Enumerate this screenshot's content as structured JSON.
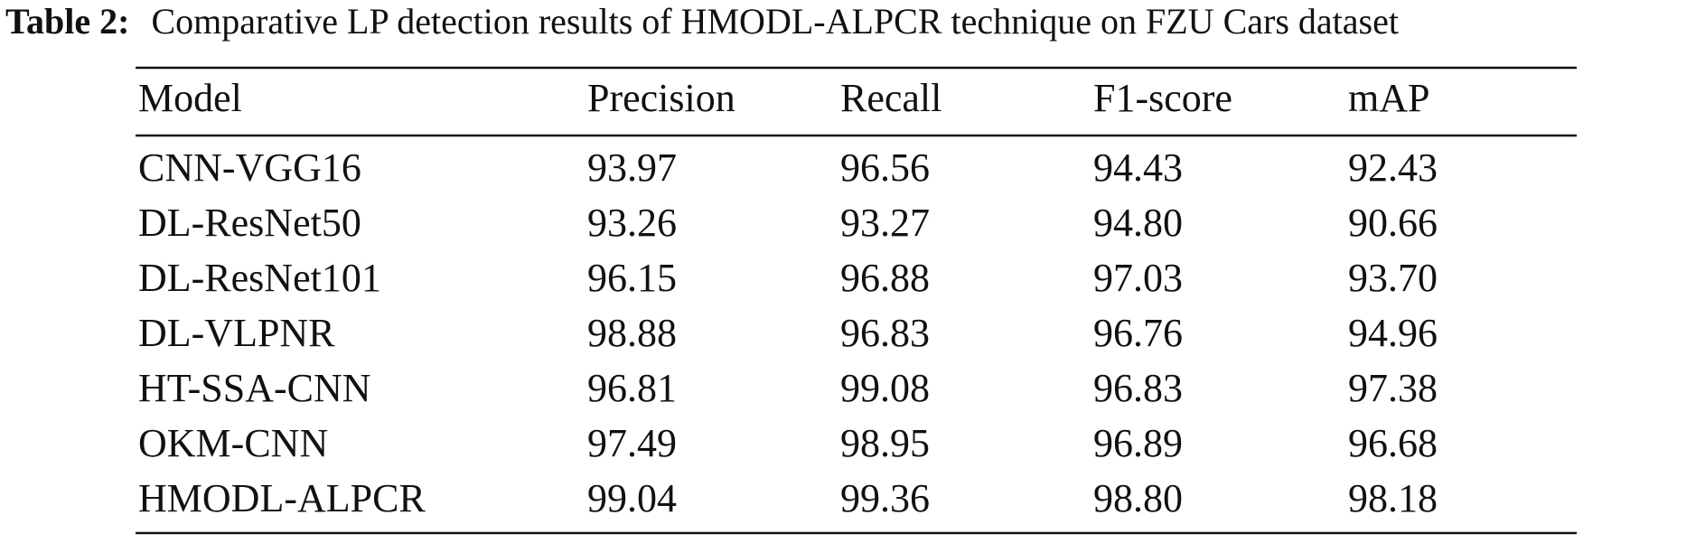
{
  "caption": {
    "label": "Table 2:",
    "text": "Comparative LP detection results of HMODL-ALPCR technique on FZU Cars dataset"
  },
  "table": {
    "header": [
      "Model",
      "Precision",
      "Recall",
      "F1-score",
      "mAP"
    ],
    "rows": [
      [
        "CNN-VGG16",
        "93.97",
        "96.56",
        "94.43",
        "92.43"
      ],
      [
        "DL-ResNet50",
        "93.26",
        "93.27",
        "94.80",
        "90.66"
      ],
      [
        "DL-ResNet101",
        "96.15",
        "96.88",
        "97.03",
        "93.70"
      ],
      [
        "DL-VLPNR",
        "98.88",
        "96.83",
        "96.76",
        "94.96"
      ],
      [
        "HT-SSA-CNN",
        "96.81",
        "99.08",
        "96.83",
        "97.38"
      ],
      [
        "OKM-CNN",
        "97.49",
        "98.95",
        "96.89",
        "96.68"
      ],
      [
        "HMODL-ALPCR",
        "99.04",
        "99.36",
        "98.80",
        "98.18"
      ]
    ]
  }
}
